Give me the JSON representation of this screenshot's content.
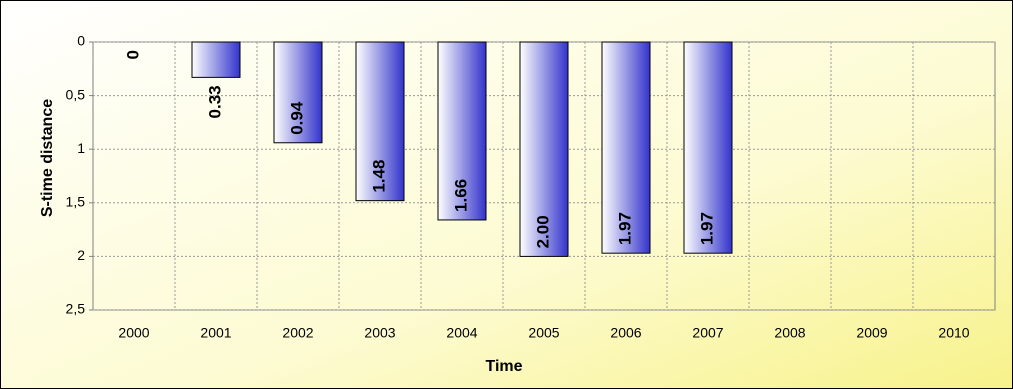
{
  "chart_data": {
    "type": "bar",
    "x_label": "Time",
    "y_label": "S-time distance",
    "categories": [
      "2000",
      "2001",
      "2002",
      "2003",
      "2004",
      "2005",
      "2006",
      "2007",
      "2008",
      "2009",
      "2010"
    ],
    "values": [
      0,
      0.33,
      0.94,
      1.48,
      1.66,
      2,
      1.97,
      1.97,
      null,
      null,
      null
    ],
    "value_labels": [
      "0",
      "0.33",
      "0.94",
      "1.48",
      "1.66",
      "2.00",
      "1.97",
      "1.97",
      null,
      null,
      null
    ],
    "color": "#3333cc",
    "ylim": [
      0,
      2.5
    ],
    "yticks": [
      0,
      {
        "value": 0.5,
        "label": "0,5"
      },
      1,
      {
        "value": 1.5,
        "label": "1,5"
      },
      2,
      {
        "value": 2.5,
        "label": "2,5"
      }
    ],
    "y_inverted": true,
    "grid": true
  }
}
